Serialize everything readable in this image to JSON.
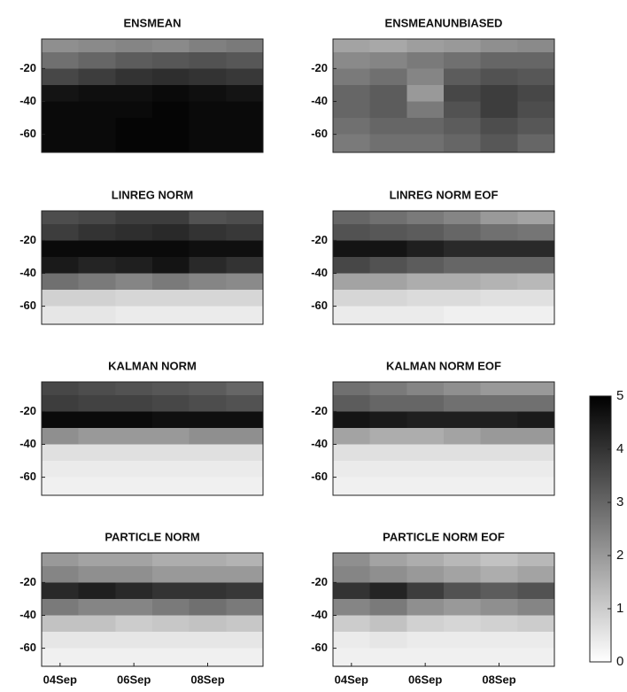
{
  "chart_data": [
    {
      "type": "heatmap",
      "title": "ENSMEAN",
      "xlim": [
        3.5,
        9.5
      ],
      "ylim": [
        -71,
        -2
      ],
      "yticks": [
        -20,
        -40,
        -60
      ],
      "zlim": [
        0,
        5
      ],
      "x_bins": [
        3.5,
        4.5,
        5.5,
        6.5,
        7.5,
        8.5,
        9.5
      ],
      "y_bins": [
        -2,
        -10,
        -20,
        -30,
        -40,
        -50,
        -60,
        -71
      ],
      "values": [
        [
          2.2,
          2.3,
          2.4,
          2.3,
          2.5,
          2.6
        ],
        [
          2.8,
          3.0,
          3.2,
          3.3,
          3.4,
          3.3
        ],
        [
          3.6,
          3.8,
          4.0,
          4.1,
          4.0,
          3.9
        ],
        [
          4.6,
          4.7,
          4.7,
          4.8,
          4.7,
          4.6
        ],
        [
          4.8,
          4.8,
          4.8,
          4.9,
          4.8,
          4.8
        ],
        [
          4.8,
          4.8,
          4.9,
          4.9,
          4.8,
          4.8
        ],
        [
          4.8,
          4.8,
          4.9,
          4.9,
          4.8,
          4.8
        ]
      ]
    },
    {
      "type": "heatmap",
      "title": "ENSMEANUNBIASED",
      "xlim": [
        3.5,
        9.5
      ],
      "ylim": [
        -71,
        -2
      ],
      "yticks": [
        -20,
        -40,
        -60
      ],
      "zlim": [
        0,
        5
      ],
      "x_bins": [
        3.5,
        4.5,
        5.5,
        6.5,
        7.5,
        8.5,
        9.5
      ],
      "y_bins": [
        -2,
        -10,
        -20,
        -30,
        -40,
        -50,
        -60,
        -71
      ],
      "values": [
        [
          1.8,
          1.7,
          1.9,
          2.0,
          2.2,
          2.3
        ],
        [
          2.3,
          2.4,
          2.6,
          2.8,
          3.0,
          3.0
        ],
        [
          2.6,
          2.8,
          2.4,
          3.2,
          3.4,
          3.3
        ],
        [
          3.0,
          3.2,
          2.0,
          3.6,
          3.8,
          3.6
        ],
        [
          3.0,
          3.2,
          2.6,
          3.4,
          3.8,
          3.5
        ],
        [
          2.8,
          3.0,
          3.0,
          3.2,
          3.5,
          3.3
        ],
        [
          2.6,
          2.8,
          2.8,
          3.0,
          3.3,
          3.0
        ]
      ]
    },
    {
      "type": "heatmap",
      "title": "LINREG NORM",
      "xlim": [
        3.5,
        9.5
      ],
      "ylim": [
        -71,
        -2
      ],
      "yticks": [
        -20,
        -40,
        -60
      ],
      "zlim": [
        0,
        5
      ],
      "x_bins": [
        3.5,
        4.5,
        5.5,
        6.5,
        7.5,
        8.5,
        9.5
      ],
      "y_bins": [
        -2,
        -10,
        -20,
        -30,
        -40,
        -50,
        -60,
        -71
      ],
      "values": [
        [
          3.5,
          3.6,
          3.8,
          3.8,
          3.4,
          3.5
        ],
        [
          3.8,
          4.0,
          4.1,
          4.2,
          4.0,
          3.9
        ],
        [
          4.8,
          4.8,
          4.8,
          4.8,
          4.7,
          4.7
        ],
        [
          4.5,
          4.3,
          4.4,
          4.6,
          4.2,
          4.0
        ],
        [
          2.8,
          2.6,
          2.4,
          2.6,
          2.4,
          2.3
        ],
        [
          0.9,
          0.9,
          0.8,
          0.8,
          0.8,
          0.8
        ],
        [
          0.5,
          0.5,
          0.4,
          0.4,
          0.4,
          0.4
        ]
      ]
    },
    {
      "type": "heatmap",
      "title": "LINREG NORM EOF",
      "xlim": [
        3.5,
        9.5
      ],
      "ylim": [
        -71,
        -2
      ],
      "yticks": [
        -20,
        -40,
        -60
      ],
      "zlim": [
        0,
        5
      ],
      "x_bins": [
        3.5,
        4.5,
        5.5,
        6.5,
        7.5,
        8.5,
        9.5
      ],
      "y_bins": [
        -2,
        -10,
        -20,
        -30,
        -40,
        -50,
        -60,
        -71
      ],
      "values": [
        [
          3.0,
          2.8,
          2.6,
          2.4,
          2.0,
          1.8
        ],
        [
          3.4,
          3.3,
          3.2,
          3.0,
          2.8,
          2.7
        ],
        [
          4.6,
          4.6,
          4.4,
          4.2,
          4.2,
          4.2
        ],
        [
          3.6,
          3.4,
          3.2,
          3.0,
          3.0,
          3.0
        ],
        [
          1.8,
          1.8,
          1.6,
          1.6,
          1.5,
          1.4
        ],
        [
          0.8,
          0.8,
          0.7,
          0.7,
          0.6,
          0.6
        ],
        [
          0.4,
          0.4,
          0.4,
          0.3,
          0.3,
          0.3
        ]
      ]
    },
    {
      "type": "heatmap",
      "title": "KALMAN NORM",
      "xlim": [
        3.5,
        9.5
      ],
      "ylim": [
        -71,
        -2
      ],
      "yticks": [
        -20,
        -40,
        -60
      ],
      "zlim": [
        0,
        5
      ],
      "x_bins": [
        3.5,
        4.5,
        5.5,
        6.5,
        7.5,
        8.5,
        9.5
      ],
      "y_bins": [
        -2,
        -10,
        -20,
        -30,
        -40,
        -50,
        -60,
        -71
      ],
      "values": [
        [
          3.6,
          3.5,
          3.4,
          3.3,
          3.2,
          3.0
        ],
        [
          3.8,
          3.7,
          3.7,
          3.6,
          3.5,
          3.4
        ],
        [
          4.8,
          4.8,
          4.8,
          4.7,
          4.7,
          4.7
        ],
        [
          2.2,
          2.0,
          2.0,
          2.0,
          2.2,
          2.2
        ],
        [
          0.6,
          0.6,
          0.6,
          0.6,
          0.6,
          0.6
        ],
        [
          0.4,
          0.4,
          0.4,
          0.4,
          0.4,
          0.4
        ],
        [
          0.3,
          0.3,
          0.3,
          0.3,
          0.3,
          0.3
        ]
      ]
    },
    {
      "type": "heatmap",
      "title": "KALMAN NORM EOF",
      "xlim": [
        3.5,
        9.5
      ],
      "ylim": [
        -71,
        -2
      ],
      "yticks": [
        -20,
        -40,
        -60
      ],
      "zlim": [
        0,
        5
      ],
      "x_bins": [
        3.5,
        4.5,
        5.5,
        6.5,
        7.5,
        8.5,
        9.5
      ],
      "y_bins": [
        -2,
        -10,
        -20,
        -30,
        -40,
        -50,
        -60,
        -71
      ],
      "values": [
        [
          2.8,
          2.6,
          2.4,
          2.2,
          2.0,
          2.0
        ],
        [
          3.2,
          3.0,
          3.0,
          2.8,
          2.8,
          2.8
        ],
        [
          4.6,
          4.5,
          4.4,
          4.4,
          4.4,
          4.5
        ],
        [
          1.8,
          1.6,
          1.6,
          1.8,
          2.0,
          2.0
        ],
        [
          0.6,
          0.6,
          0.6,
          0.6,
          0.6,
          0.6
        ],
        [
          0.4,
          0.4,
          0.4,
          0.4,
          0.4,
          0.4
        ],
        [
          0.3,
          0.3,
          0.3,
          0.3,
          0.3,
          0.3
        ]
      ]
    },
    {
      "type": "heatmap",
      "title": "PARTICLE NORM",
      "xlim": [
        3.5,
        9.5
      ],
      "ylim": [
        -71,
        -2
      ],
      "yticks": [
        -20,
        -40,
        -60
      ],
      "zlim": [
        0,
        5
      ],
      "xticks": [
        {
          "value": 4,
          "label": "04Sep"
        },
        {
          "value": 6,
          "label": "06Sep"
        },
        {
          "value": 8,
          "label": "08Sep"
        }
      ],
      "x_bins": [
        3.5,
        4.5,
        5.5,
        6.5,
        7.5,
        8.5,
        9.5
      ],
      "y_bins": [
        -2,
        -10,
        -20,
        -30,
        -40,
        -50,
        -60,
        -71
      ],
      "values": [
        [
          2.0,
          1.8,
          1.8,
          1.6,
          1.6,
          1.5
        ],
        [
          2.4,
          2.2,
          2.2,
          2.0,
          2.0,
          2.0
        ],
        [
          4.2,
          4.4,
          4.2,
          4.0,
          4.0,
          3.9
        ],
        [
          2.6,
          2.4,
          2.4,
          2.6,
          2.8,
          2.6
        ],
        [
          1.2,
          1.2,
          1.0,
          1.1,
          1.2,
          1.1
        ],
        [
          0.5,
          0.5,
          0.5,
          0.5,
          0.5,
          0.5
        ],
        [
          0.3,
          0.3,
          0.3,
          0.3,
          0.3,
          0.3
        ]
      ]
    },
    {
      "type": "heatmap",
      "title": "PARTICLE NORM EOF",
      "xlim": [
        3.5,
        9.5
      ],
      "ylim": [
        -71,
        -2
      ],
      "yticks": [
        -20,
        -40,
        -60
      ],
      "zlim": [
        0,
        5
      ],
      "xticks": [
        {
          "value": 4,
          "label": "04Sep"
        },
        {
          "value": 6,
          "label": "06Sep"
        },
        {
          "value": 8,
          "label": "08Sep"
        }
      ],
      "x_bins": [
        3.5,
        4.5,
        5.5,
        6.5,
        7.5,
        8.5,
        9.5
      ],
      "y_bins": [
        -2,
        -10,
        -20,
        -30,
        -40,
        -50,
        -60,
        -71
      ],
      "values": [
        [
          2.2,
          1.8,
          1.6,
          1.4,
          1.2,
          1.4
        ],
        [
          2.4,
          2.2,
          2.0,
          1.8,
          1.6,
          1.8
        ],
        [
          4.0,
          4.3,
          3.8,
          3.4,
          3.2,
          3.4
        ],
        [
          2.4,
          2.6,
          2.2,
          2.0,
          2.2,
          2.4
        ],
        [
          1.0,
          1.2,
          0.9,
          0.8,
          0.9,
          1.0
        ],
        [
          0.4,
          0.5,
          0.4,
          0.4,
          0.4,
          0.4
        ],
        [
          0.3,
          0.3,
          0.3,
          0.3,
          0.3,
          0.3
        ]
      ]
    },
    {
      "type": "colorbar",
      "zlim": [
        0,
        5
      ],
      "zticks": [
        0,
        1,
        2,
        3,
        4,
        5
      ],
      "colormap": [
        "#ffffff",
        "#000000"
      ]
    }
  ]
}
